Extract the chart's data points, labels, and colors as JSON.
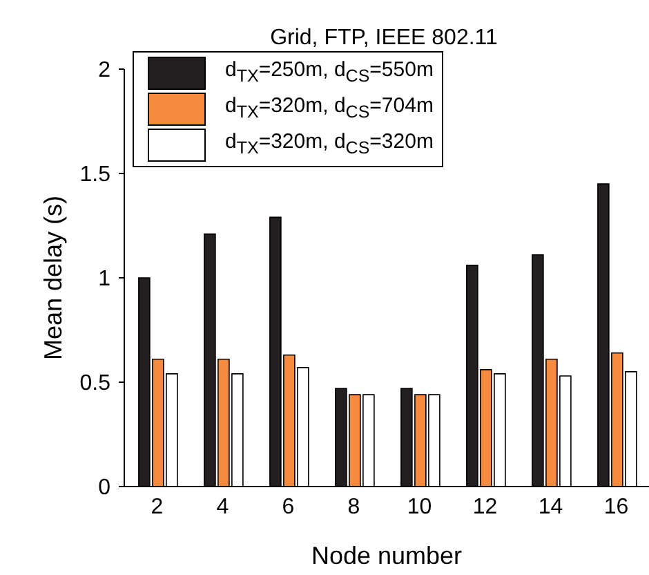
{
  "chart_data": {
    "type": "bar",
    "title": "Grid, FTP, IEEE 802.11",
    "xlabel": "Node number",
    "ylabel": "Mean delay (s)",
    "categories": [
      "2",
      "4",
      "6",
      "8",
      "10",
      "12",
      "14",
      "16"
    ],
    "series": [
      {
        "name": "d$_{TX}$=250m, d$_{CS}$=550m",
        "color": "#231f20",
        "values": [
          1.0,
          1.21,
          1.29,
          0.47,
          0.47,
          1.06,
          1.11,
          1.45
        ]
      },
      {
        "name": "d$_{TX}$=320m, d$_{CS}$=704m",
        "color": "#f58b3f",
        "values": [
          0.61,
          0.61,
          0.63,
          0.44,
          0.44,
          0.56,
          0.61,
          0.64
        ]
      },
      {
        "name": "d$_{TX}$=320m, d$_{CS}$=320m",
        "color": "#ffffff",
        "values": [
          0.54,
          0.54,
          0.57,
          0.44,
          0.44,
          0.54,
          0.53,
          0.55
        ]
      }
    ],
    "ylim": [
      0,
      2
    ],
    "yticks": [
      0,
      0.5,
      1,
      1.5,
      2
    ],
    "grid": false,
    "legend": "top left"
  }
}
